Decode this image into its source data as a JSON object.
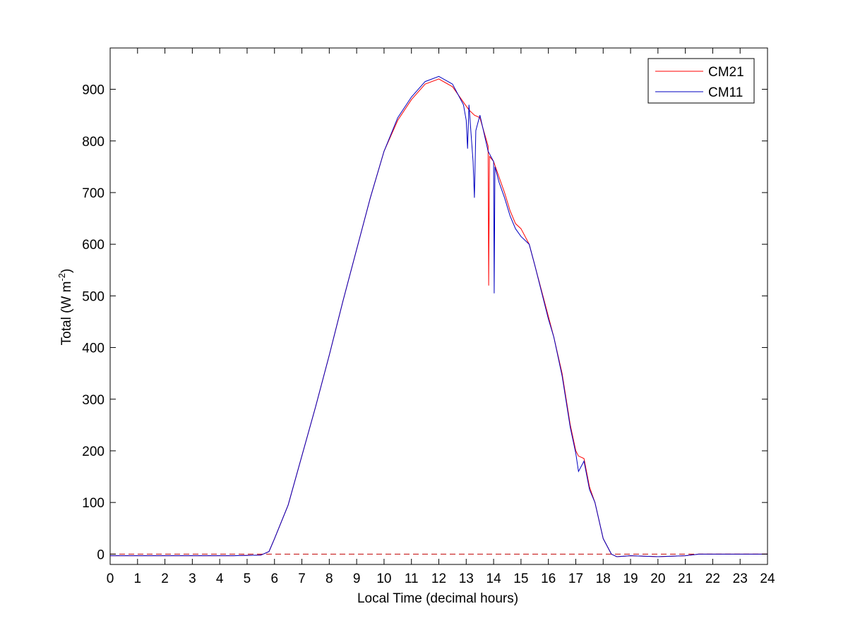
{
  "chart_data": {
    "type": "line",
    "xlabel": "Local Time (decimal hours)",
    "ylabel_main": "Total (W m",
    "ylabel_sup": "-2",
    "ylabel_close": ")",
    "xlim": [
      0,
      24
    ],
    "ylim": [
      -20,
      980
    ],
    "xticks": [
      0,
      1,
      2,
      3,
      4,
      5,
      6,
      7,
      8,
      9,
      10,
      11,
      12,
      13,
      14,
      15,
      16,
      17,
      18,
      19,
      20,
      21,
      22,
      23,
      24
    ],
    "yticks": [
      0,
      100,
      200,
      300,
      400,
      500,
      600,
      700,
      800,
      900
    ],
    "grid": false,
    "legend_position": "top-right",
    "zero_line": {
      "y": 0,
      "style": "dashed",
      "color": "#c00000"
    },
    "series": [
      {
        "name": "CM21",
        "color": "#ff0000",
        "x": [
          0,
          4.5,
          5.5,
          5.8,
          6.0,
          6.5,
          7.0,
          7.5,
          8.0,
          8.5,
          9.0,
          9.5,
          10.0,
          10.5,
          11.0,
          11.5,
          12.0,
          12.5,
          12.9,
          13.1,
          13.3,
          13.5,
          13.8,
          13.82,
          13.85,
          14.0,
          14.2,
          14.4,
          14.6,
          14.8,
          15.0,
          15.3,
          15.5,
          16.0,
          16.2,
          16.5,
          16.8,
          17.0,
          17.1,
          17.3,
          17.5,
          17.7,
          18.0,
          18.3,
          18.5,
          19.0,
          20.0,
          21.0,
          21.5,
          24.0
        ],
        "y": [
          -3,
          -3,
          -2,
          5,
          30,
          95,
          190,
          285,
          385,
          490,
          590,
          690,
          780,
          840,
          880,
          910,
          920,
          905,
          875,
          860,
          850,
          845,
          790,
          520,
          770,
          760,
          730,
          700,
          665,
          640,
          630,
          600,
          560,
          460,
          420,
          350,
          250,
          200,
          190,
          185,
          130,
          100,
          30,
          0,
          -5,
          -3,
          -5,
          -3,
          0,
          0
        ]
      },
      {
        "name": "CM11",
        "color": "#0000c0",
        "x": [
          0,
          4.5,
          5.5,
          5.8,
          6.0,
          6.5,
          7.0,
          7.5,
          8.0,
          8.5,
          9.0,
          9.5,
          10.0,
          10.5,
          11.0,
          11.5,
          12.0,
          12.5,
          12.9,
          13.0,
          13.05,
          13.1,
          13.25,
          13.3,
          13.35,
          13.5,
          13.8,
          13.9,
          14.0,
          14.02,
          14.05,
          14.2,
          14.4,
          14.6,
          14.8,
          15.0,
          15.3,
          15.5,
          16.0,
          16.2,
          16.5,
          16.8,
          17.0,
          17.1,
          17.3,
          17.5,
          17.7,
          18.0,
          18.3,
          18.5,
          19.0,
          20.0,
          21.0,
          21.5,
          24.0
        ],
        "y": [
          -3,
          -3,
          -2,
          5,
          30,
          95,
          190,
          285,
          385,
          490,
          590,
          690,
          780,
          845,
          885,
          915,
          925,
          910,
          870,
          840,
          785,
          870,
          760,
          690,
          820,
          850,
          780,
          770,
          760,
          505,
          750,
          720,
          690,
          655,
          630,
          615,
          600,
          560,
          455,
          420,
          345,
          245,
          195,
          160,
          180,
          125,
          100,
          30,
          0,
          -5,
          -3,
          -5,
          -3,
          0,
          0
        ]
      }
    ]
  }
}
